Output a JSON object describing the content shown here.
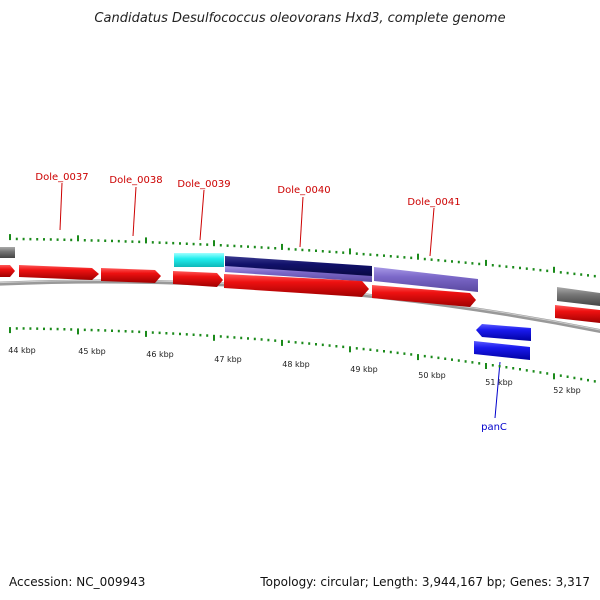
{
  "title": "Candidatus Desulfococcus oleovorans Hxd3, complete genome",
  "footer": {
    "accession": "Accession: NC_009943",
    "summary": "Topology: circular; Length: 3,944,167 bp; Genes: 3,317"
  },
  "colors": {
    "cds_forward": "#ee1111",
    "cds_reverse": "#1a1aee",
    "gray_feature": "#777777",
    "cyan_feature": "#22eeee",
    "navy_feature": "#11116a",
    "slate_feature": "#7b68c8",
    "tick_green": "#1a8a1a",
    "backbone": "#888888"
  },
  "scale_labels": [
    "44 kbp",
    "45 kbp",
    "46 kbp",
    "47 kbp",
    "48 kbp",
    "49 kbp",
    "50 kbp",
    "51 kbp",
    "52 kbp"
  ],
  "gene_labels": [
    {
      "id": "g37",
      "text": "Dole_0037"
    },
    {
      "id": "g38",
      "text": "Dole_0038"
    },
    {
      "id": "g39",
      "text": "Dole_0039"
    },
    {
      "id": "g40",
      "text": "Dole_0040"
    },
    {
      "id": "g41",
      "text": "Dole_0041"
    },
    {
      "id": "panC",
      "text": "panC"
    }
  ]
}
